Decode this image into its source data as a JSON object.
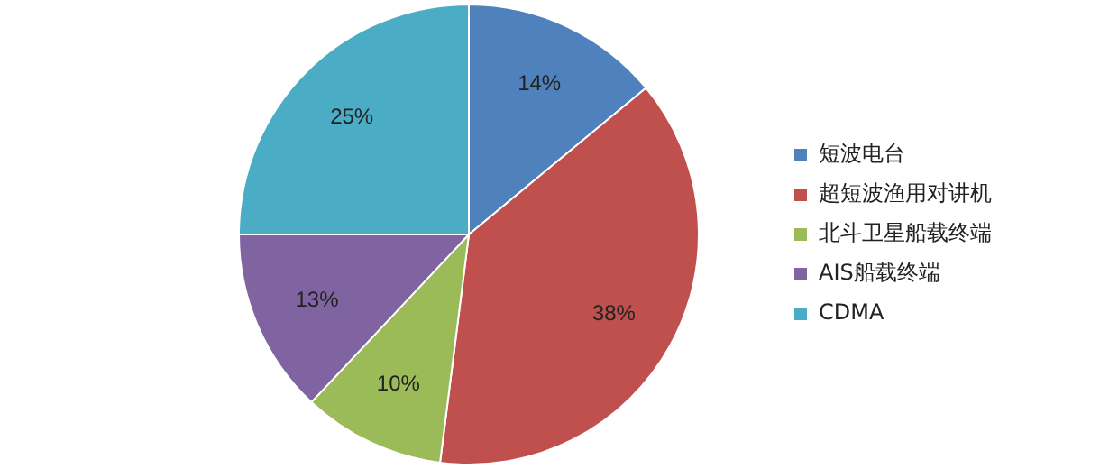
{
  "chart_data": {
    "type": "pie",
    "categories": [
      "短波电台",
      "超短波渔用对讲机",
      "北斗卫星船载终端",
      "AIS船载终端",
      "CDMA"
    ],
    "values": [
      14,
      38,
      10,
      13,
      25
    ],
    "colors": [
      "#4f81bd",
      "#c0504d",
      "#9bbb59",
      "#8064a2",
      "#4bacc6"
    ],
    "value_labels": [
      "14%",
      "38%",
      "10%",
      "13%",
      "25%"
    ],
    "legend": "right"
  }
}
